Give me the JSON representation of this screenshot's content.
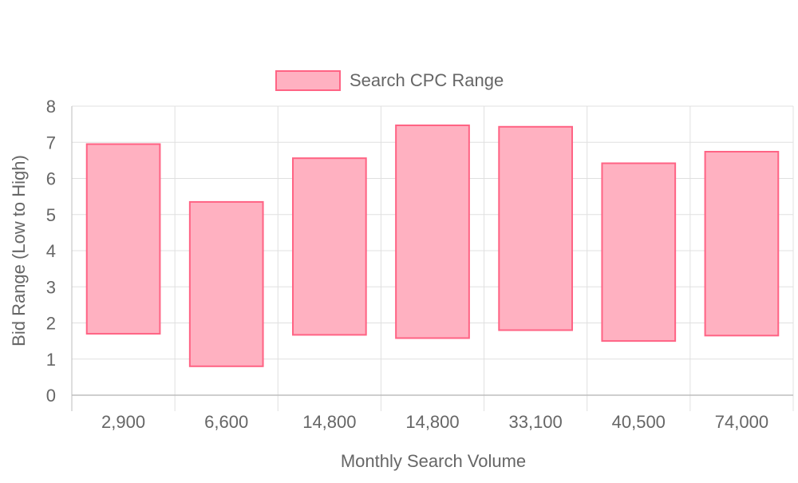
{
  "chart_data": {
    "type": "bar",
    "subtype": "floating-range",
    "legend": {
      "position": "top",
      "entries": [
        {
          "label": "Search CPC Range",
          "fill": "#ffb1c1",
          "stroke": "#ff6384"
        }
      ]
    },
    "xlabel": "Monthly Search Volume",
    "ylabel": "Bid Range (Low to High)",
    "ylim": [
      0,
      8
    ],
    "yticks": [
      0,
      1,
      2,
      3,
      4,
      5,
      6,
      7,
      8
    ],
    "grid": true,
    "categories": [
      "2,900",
      "6,600",
      "14,800",
      "14,800",
      "33,100",
      "40,500",
      "74,000"
    ],
    "series": [
      {
        "name": "Search CPC Range",
        "ranges": [
          [
            1.7,
            6.95
          ],
          [
            0.8,
            5.35
          ],
          [
            1.67,
            6.56
          ],
          [
            1.58,
            7.47
          ],
          [
            1.8,
            7.43
          ],
          [
            1.5,
            6.42
          ],
          [
            1.65,
            6.74
          ]
        ]
      }
    ],
    "colors": {
      "bar_fill": "#ffb1c1",
      "bar_stroke": "#ff6384",
      "grid": "#e0e0e0",
      "axis": "#bdbdbd",
      "text": "#666666"
    }
  }
}
